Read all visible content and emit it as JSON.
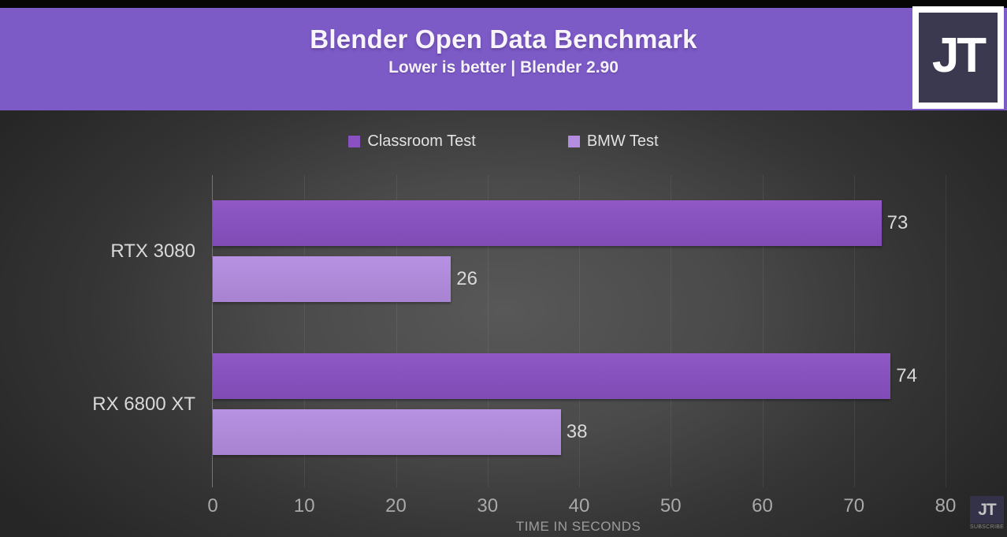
{
  "header": {
    "title": "Blender Open Data Benchmark",
    "subtitle": "Lower is better | Blender 2.90",
    "bg_color": "#7d5bc7",
    "logo_text": "JT"
  },
  "chart_data": {
    "type": "bar",
    "orientation": "horizontal",
    "title": "Blender Open Data Benchmark",
    "subtitle": "Lower is better | Blender 2.90",
    "categories": [
      "RTX 3080",
      "RX 6800 XT"
    ],
    "series": [
      {
        "name": "Classroom Test",
        "color": "#8a51c3",
        "values": [
          73,
          74
        ]
      },
      {
        "name": "BMW Test",
        "color": "#b48de1",
        "values": [
          26,
          38
        ]
      }
    ],
    "xlabel": "TIME IN SECONDS",
    "xlim": [
      0,
      80
    ],
    "xticks": [
      0,
      10,
      20,
      30,
      40,
      50,
      60,
      70,
      80
    ],
    "grid": true,
    "legend_position": "top",
    "value_labels": true
  },
  "watermark": {
    "logo_text": "JT",
    "subscribe_label": "SUBSCRIBE"
  }
}
